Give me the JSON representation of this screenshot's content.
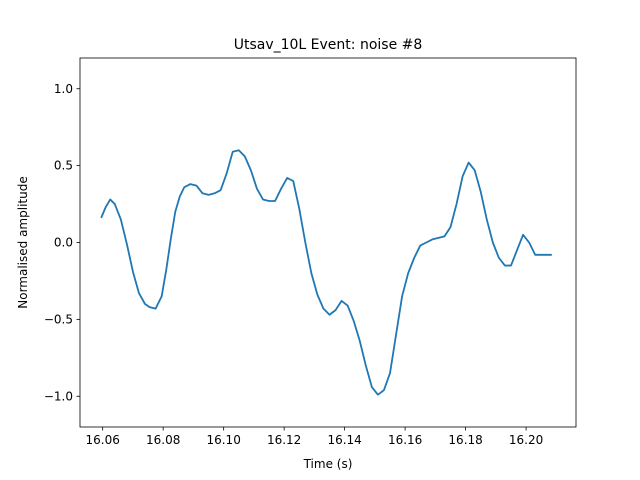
{
  "chart_data": {
    "type": "line",
    "title": "Utsav_10L Event: noise #8",
    "xlabel": "Time (s)",
    "ylabel": "Normalised amplitude",
    "xlim": [
      16.0525,
      16.2165
    ],
    "ylim": [
      -1.2,
      1.2
    ],
    "grid": false,
    "line_color": "#1f77b4",
    "x_ticks": [
      16.06,
      16.08,
      16.1,
      16.12,
      16.14,
      16.16,
      16.18,
      16.2
    ],
    "x_tick_labels": [
      "16.06",
      "16.08",
      "16.10",
      "16.12",
      "16.14",
      "16.16",
      "16.18",
      "16.20"
    ],
    "y_ticks": [
      1.0,
      0.5,
      0.0,
      -0.5,
      -1.0
    ],
    "y_tick_labels": [
      "1.0",
      "0.5",
      "0.0",
      "−0.5",
      "−1.0"
    ],
    "series": [
      {
        "x": [
          16.0595,
          16.061,
          16.0625,
          16.064,
          16.066,
          16.068,
          16.07,
          16.072,
          16.074,
          16.0755,
          16.0775,
          16.0795,
          16.081,
          16.0825,
          16.084,
          16.0855,
          16.087,
          16.089,
          16.091,
          16.093,
          16.095,
          16.097,
          16.099,
          16.101,
          16.103,
          16.105,
          16.107,
          16.109,
          16.111,
          16.113,
          16.115,
          16.117,
          16.119,
          16.121,
          16.123,
          16.125,
          16.127,
          16.129,
          16.131,
          16.133,
          16.135,
          16.137,
          16.139,
          16.141,
          16.143,
          16.145,
          16.147,
          16.149,
          16.151,
          16.153,
          16.155,
          16.157,
          16.159,
          16.161,
          16.163,
          16.165,
          16.167,
          16.169,
          16.171,
          16.173,
          16.175,
          16.177,
          16.179,
          16.181,
          16.183,
          16.185,
          16.187,
          16.189,
          16.191,
          16.193,
          16.195,
          16.197,
          16.199,
          16.201,
          16.203,
          16.205,
          16.207,
          16.2085
        ],
        "y": [
          0.16,
          0.23,
          0.28,
          0.25,
          0.15,
          -0.01,
          -0.19,
          -0.33,
          -0.4,
          -0.42,
          -0.43,
          -0.35,
          -0.18,
          0.02,
          0.2,
          0.3,
          0.36,
          0.38,
          0.37,
          0.32,
          0.31,
          0.32,
          0.34,
          0.45,
          0.59,
          0.6,
          0.56,
          0.47,
          0.35,
          0.28,
          0.27,
          0.27,
          0.35,
          0.42,
          0.4,
          0.22,
          0.0,
          -0.2,
          -0.34,
          -0.43,
          -0.47,
          -0.44,
          -0.38,
          -0.41,
          -0.51,
          -0.64,
          -0.8,
          -0.94,
          -0.99,
          -0.96,
          -0.85,
          -0.6,
          -0.35,
          -0.2,
          -0.1,
          -0.02,
          0.0,
          0.02,
          0.03,
          0.04,
          0.1,
          0.25,
          0.43,
          0.52,
          0.47,
          0.33,
          0.15,
          0.0,
          -0.1,
          -0.15,
          -0.15,
          -0.05,
          0.05,
          0.0,
          -0.08,
          -0.08,
          -0.08,
          -0.08
        ]
      }
    ]
  }
}
